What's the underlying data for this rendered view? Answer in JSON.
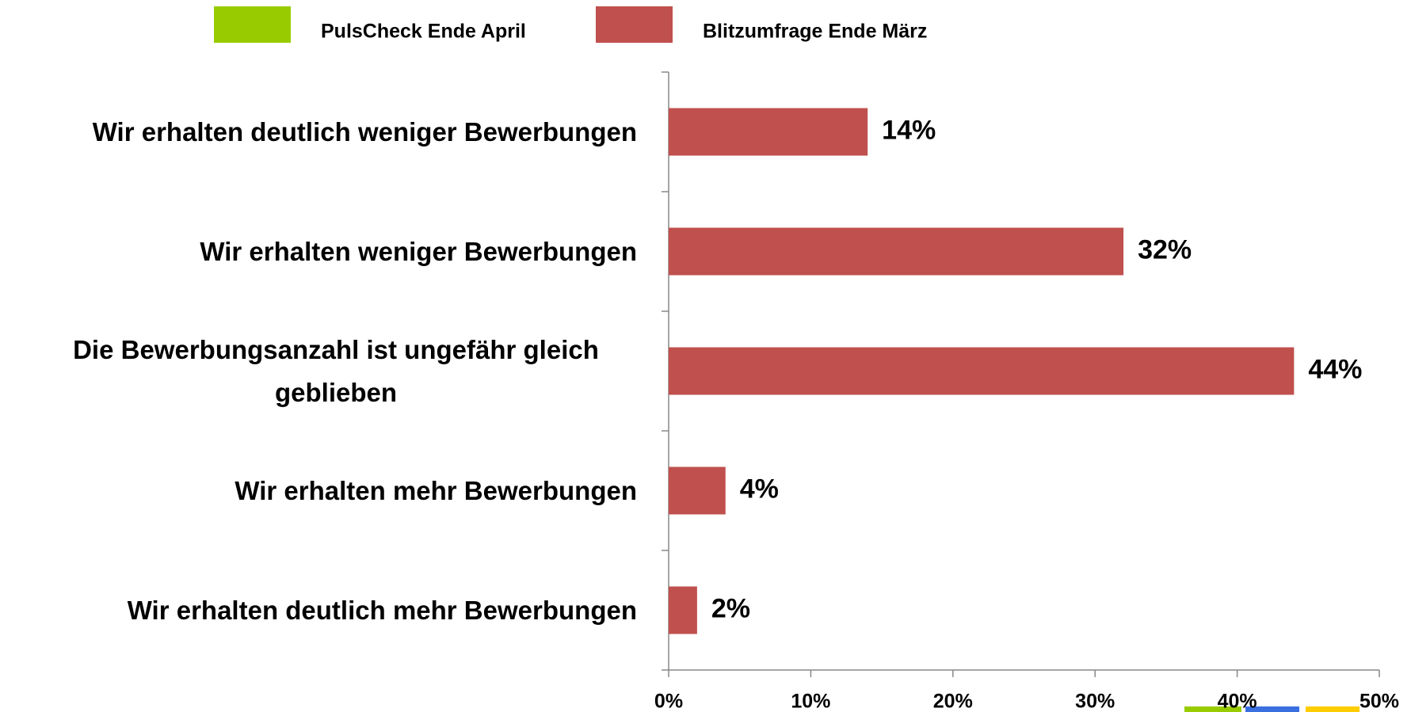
{
  "chart_data": {
    "type": "bar",
    "orientation": "horizontal",
    "categories": [
      "Wir erhalten deutlich weniger Bewerbungen",
      "Wir erhalten weniger Bewerbungen",
      "Die Bewerbungsanzahl ist ungefähr gleich geblieben",
      "Wir erhalten mehr Bewerbungen",
      "Wir erhalten deutlich mehr Bewerbungen"
    ],
    "series": [
      {
        "name": "PulsCheck Ende April",
        "color": "#99cc00",
        "values": [
          null,
          null,
          null,
          null,
          null
        ]
      },
      {
        "name": "Blitzumfrage Ende März",
        "color": "#c0504d",
        "values": [
          14,
          32,
          44,
          4,
          2
        ],
        "value_labels": [
          "14%",
          "32%",
          "44%",
          "4%",
          "2%"
        ]
      }
    ],
    "xlim": [
      0,
      50
    ],
    "xticks": [
      {
        "value": 0,
        "label": "0%"
      },
      {
        "value": 10,
        "label": "10%"
      },
      {
        "value": 20,
        "label": "20%"
      },
      {
        "value": 30,
        "label": "30%"
      },
      {
        "value": 40,
        "label": "40%"
      },
      {
        "value": 50,
        "label": "50%"
      }
    ],
    "legend": "top"
  }
}
